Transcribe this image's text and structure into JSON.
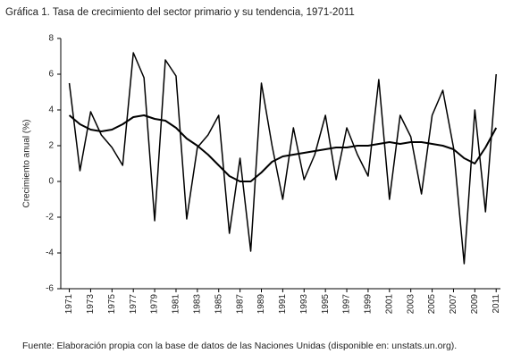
{
  "chart_data": {
    "type": "line",
    "title": "Gráfica 1. Tasa de crecimiento del sector primario y su tendencia, 1971-2011",
    "ylabel": "Crecimiento anual (%)",
    "source": "Fuente: Elaboración propia con la base de datos de las Naciones Unidas (disponible en: unstats.un.org).",
    "x": [
      1971,
      1972,
      1973,
      1974,
      1975,
      1976,
      1977,
      1978,
      1979,
      1980,
      1981,
      1982,
      1983,
      1984,
      1985,
      1986,
      1987,
      1988,
      1989,
      1990,
      1991,
      1992,
      1993,
      1994,
      1995,
      1996,
      1997,
      1998,
      1999,
      2000,
      2001,
      2002,
      2003,
      2004,
      2005,
      2006,
      2007,
      2008,
      2009,
      2010,
      2011
    ],
    "series": [
      {
        "color": "#000000",
        "values": [
          5.5,
          0.6,
          3.9,
          2.6,
          1.9,
          0.9,
          7.2,
          5.8,
          -2.2,
          6.8,
          5.9,
          -2.1,
          1.9,
          2.6,
          3.7,
          -2.9,
          1.3,
          -3.9,
          5.5,
          2.0,
          -1.0,
          3.0,
          0.1,
          1.5,
          3.7,
          0.1,
          3.0,
          1.5,
          0.3,
          5.7,
          -1.0,
          3.7,
          2.5,
          -0.7,
          3.7,
          5.1,
          1.9,
          -4.6,
          4.0,
          -1.7,
          6.0
        ]
      },
      {
        "color": "#000000",
        "values": [
          3.7,
          3.2,
          2.9,
          2.8,
          2.9,
          3.2,
          3.6,
          3.7,
          3.5,
          3.4,
          3.0,
          2.4,
          2.0,
          1.5,
          0.9,
          0.3,
          0.0,
          0.0,
          0.5,
          1.1,
          1.4,
          1.5,
          1.6,
          1.7,
          1.8,
          1.9,
          1.9,
          2.0,
          2.0,
          2.1,
          2.2,
          2.1,
          2.2,
          2.2,
          2.1,
          2.0,
          1.8,
          1.3,
          1.0,
          1.9,
          3.0
        ]
      }
    ],
    "xlim": [
      1970.2,
      2011.4
    ],
    "xticks": [
      1971,
      1973,
      1975,
      1977,
      1979,
      1981,
      1983,
      1985,
      1987,
      1989,
      1991,
      1993,
      1995,
      1997,
      1999,
      2001,
      2003,
      2005,
      2007,
      2009,
      2011
    ],
    "ylim": [
      -6,
      8
    ],
    "yticks": [
      -6,
      -4,
      -2,
      0,
      2,
      4,
      6,
      8
    ]
  }
}
